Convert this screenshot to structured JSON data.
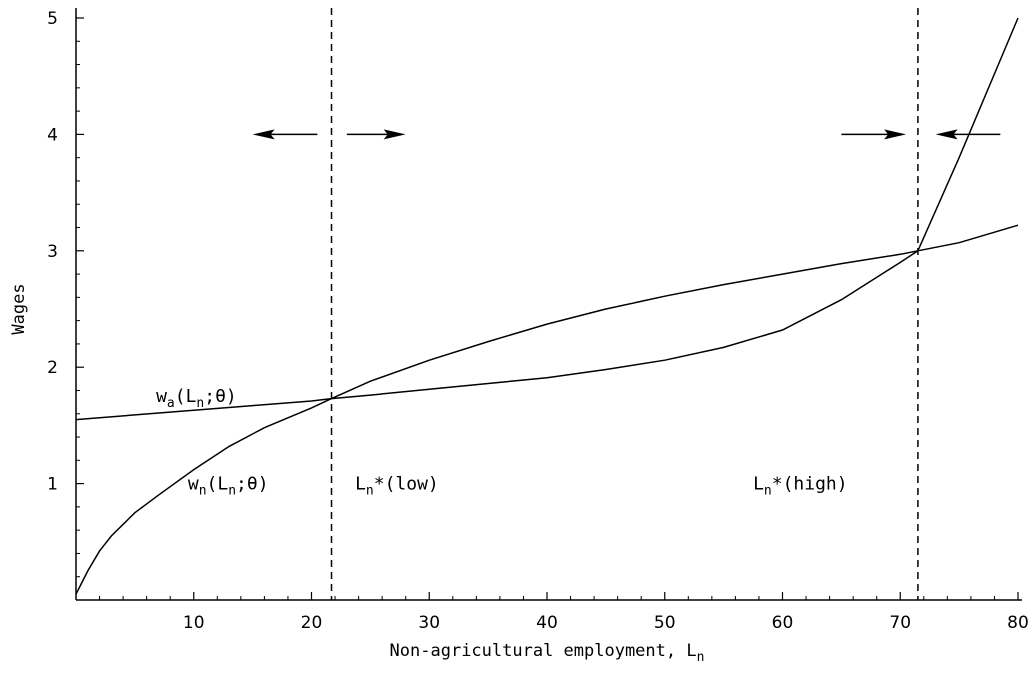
{
  "chart_data": {
    "type": "line",
    "title": "",
    "xlabel": "Non-agricultural employment, ",
    "xlabel_subscript_var": "L",
    "xlabel_subscript": "n",
    "ylabel": "Wages",
    "xlim": [
      0,
      80
    ],
    "ylim": [
      0,
      5
    ],
    "x_ticks": [
      10,
      20,
      30,
      40,
      50,
      60,
      70,
      80
    ],
    "y_ticks": [
      1,
      2,
      3,
      4,
      5
    ],
    "grid": false,
    "series": [
      {
        "label_var": "w",
        "label_sub": "a",
        "label_args": "(L",
        "label_args_sub": "n",
        "label_args_end": ";θ)",
        "x": [
          0,
          5,
          10,
          15,
          20,
          21.7,
          25,
          30,
          35,
          40,
          45,
          50,
          55,
          60,
          65,
          70,
          71.5,
          75,
          80
        ],
        "y": [
          1.55,
          1.59,
          1.63,
          1.67,
          1.71,
          1.73,
          1.76,
          1.81,
          1.86,
          1.91,
          1.98,
          2.06,
          2.17,
          2.32,
          2.58,
          2.9,
          3.0,
          3.8,
          5.0
        ]
      },
      {
        "label_var": "w",
        "label_sub": "n",
        "label_args": "(L",
        "label_args_sub": "n",
        "label_args_end": ";θ)",
        "x": [
          0,
          0.5,
          1,
          2,
          3,
          5,
          7,
          10,
          13,
          16,
          20,
          21.7,
          25,
          30,
          35,
          40,
          45,
          50,
          55,
          60,
          65,
          70,
          71.5,
          75,
          80
        ],
        "y": [
          0.05,
          0.15,
          0.25,
          0.42,
          0.55,
          0.75,
          0.9,
          1.12,
          1.32,
          1.48,
          1.65,
          1.73,
          1.88,
          2.06,
          2.22,
          2.37,
          2.5,
          2.61,
          2.71,
          2.8,
          2.89,
          2.97,
          3.0,
          3.07,
          3.22
        ]
      }
    ],
    "equilibria": [
      {
        "x": 21.7,
        "label_var": "L",
        "label_sub": "n",
        "label_rest": "*(low)"
      },
      {
        "x": 71.5,
        "label_var": "L",
        "label_sub": "n",
        "label_rest": "*(high)"
      }
    ],
    "arrows": [
      {
        "x_from": 20.5,
        "x_to": 15,
        "y": 4
      },
      {
        "x_from": 23,
        "x_to": 28,
        "y": 4
      },
      {
        "x_from": 65,
        "x_to": 70.5,
        "y": 4
      },
      {
        "x_from": 78.5,
        "x_to": 73,
        "y": 4
      }
    ]
  }
}
